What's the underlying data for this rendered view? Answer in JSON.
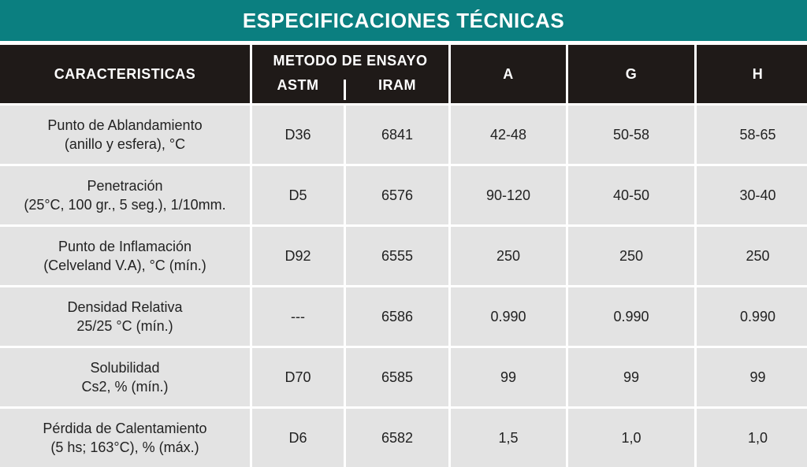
{
  "title": "ESPECIFICACIONES TÉCNICAS",
  "header": {
    "characteristics": "CARACTERISTICAS",
    "method": "METODO DE ENSAYO",
    "astm": "ASTM",
    "iram": "IRAM",
    "a": "A",
    "g": "G",
    "h": "H"
  },
  "rows": [
    {
      "line1": "Punto de Ablandamiento",
      "line2": "(anillo y esfera), °C",
      "astm": "D36",
      "iram": "6841",
      "a": "42-48",
      "g": "50-58",
      "h": "58-65"
    },
    {
      "line1": "Penetración",
      "line2": "(25°C, 100 gr., 5 seg.), 1/10mm.",
      "astm": "D5",
      "iram": "6576",
      "a": "90-120",
      "g": "40-50",
      "h": "30-40"
    },
    {
      "line1": "Punto de Inflamación",
      "line2": "(Celveland V.A), °C (mín.)",
      "astm": "D92",
      "iram": "6555",
      "a": "250",
      "g": "250",
      "h": "250"
    },
    {
      "line1": "Densidad Relativa",
      "line2": "25/25 °C (mín.)",
      "astm": "---",
      "iram": "6586",
      "a": "0.990",
      "g": "0.990",
      "h": "0.990"
    },
    {
      "line1": "Solubilidad",
      "line2": "Cs2, % (mín.)",
      "astm": "D70",
      "iram": "6585",
      "a": "99",
      "g": "99",
      "h": "99"
    },
    {
      "line1": "Pérdida de Calentamiento",
      "line2": "(5 hs; 163°C), % (máx.)",
      "astm": "D6",
      "iram": "6582",
      "a": "1,5",
      "g": "1,0",
      "h": "1,0"
    }
  ],
  "colors": {
    "banner": "#0b7f80",
    "header": "#1f1a18",
    "cell": "#e3e3e3"
  }
}
